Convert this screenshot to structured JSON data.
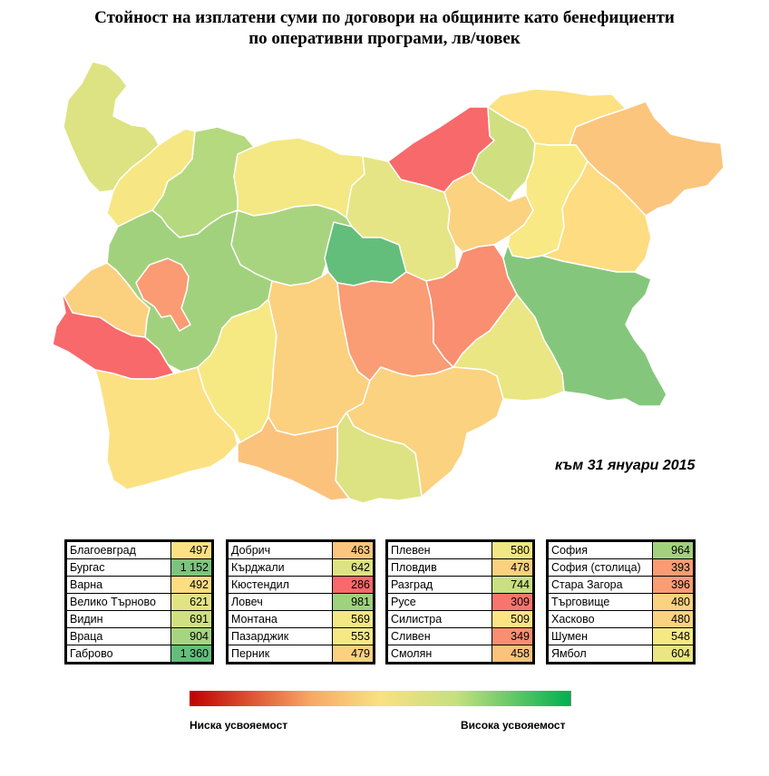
{
  "title_line1": "Стойност на изплатени суми по договори на общините като бенефициенти",
  "title_line2": "по оперативни програми, лв/човек",
  "date_note": "към 31 януари 2015",
  "legend": {
    "low": "Ниска усвояемост",
    "high": "Висока усвояемост"
  },
  "tables": [
    [
      {
        "name": "Благоевград",
        "value": "497",
        "color": "#fce183"
      },
      {
        "name": "Бургас",
        "value": "1 152",
        "color": "#7cc47e"
      },
      {
        "name": "Варна",
        "value": "492",
        "color": "#fddc82"
      },
      {
        "name": "Велико Търново",
        "value": "621",
        "color": "#e4e383"
      },
      {
        "name": "Видин",
        "value": "691",
        "color": "#d0e080"
      },
      {
        "name": "Враца",
        "value": "904",
        "color": "#a6d57f"
      },
      {
        "name": "Габрово",
        "value": "1 360",
        "color": "#63be7b"
      }
    ],
    [
      {
        "name": "Добрич",
        "value": "463",
        "color": "#fbc57d"
      },
      {
        "name": "Кърджали",
        "value": "642",
        "color": "#dde382"
      },
      {
        "name": "Кюстендил",
        "value": "286",
        "color": "#f8696b"
      },
      {
        "name": "Ловеч",
        "value": "981",
        "color": "#9fd17e"
      },
      {
        "name": "Монтана",
        "value": "569",
        "color": "#f3e884"
      },
      {
        "name": "Пазарджик",
        "value": "553",
        "color": "#f6e984"
      },
      {
        "name": "Перник",
        "value": "479",
        "color": "#fbd180"
      }
    ],
    [
      {
        "name": "Плевен",
        "value": "580",
        "color": "#f1e884"
      },
      {
        "name": "Пловдив",
        "value": "478",
        "color": "#fbd07f"
      },
      {
        "name": "Разград",
        "value": "744",
        "color": "#c9df81"
      },
      {
        "name": "Русе",
        "value": "309",
        "color": "#f8756d"
      },
      {
        "name": "Силистра",
        "value": "509",
        "color": "#fde483"
      },
      {
        "name": "Сливен",
        "value": "349",
        "color": "#f98e71"
      },
      {
        "name": "Смолян",
        "value": "458",
        "color": "#fbc27c"
      }
    ],
    [
      {
        "name": "София",
        "value": "964",
        "color": "#a2d17e"
      },
      {
        "name": "София (столица)",
        "value": "393",
        "color": "#fa9b74"
      },
      {
        "name": "Стара Загора",
        "value": "396",
        "color": "#fa9c74"
      },
      {
        "name": "Търговище",
        "value": "480",
        "color": "#fbd280"
      },
      {
        "name": "Хасково",
        "value": "480",
        "color": "#fbd280"
      },
      {
        "name": "Шумен",
        "value": "548",
        "color": "#f6e984"
      },
      {
        "name": "Ямбол",
        "value": "604",
        "color": "#e9e683"
      }
    ]
  ]
}
